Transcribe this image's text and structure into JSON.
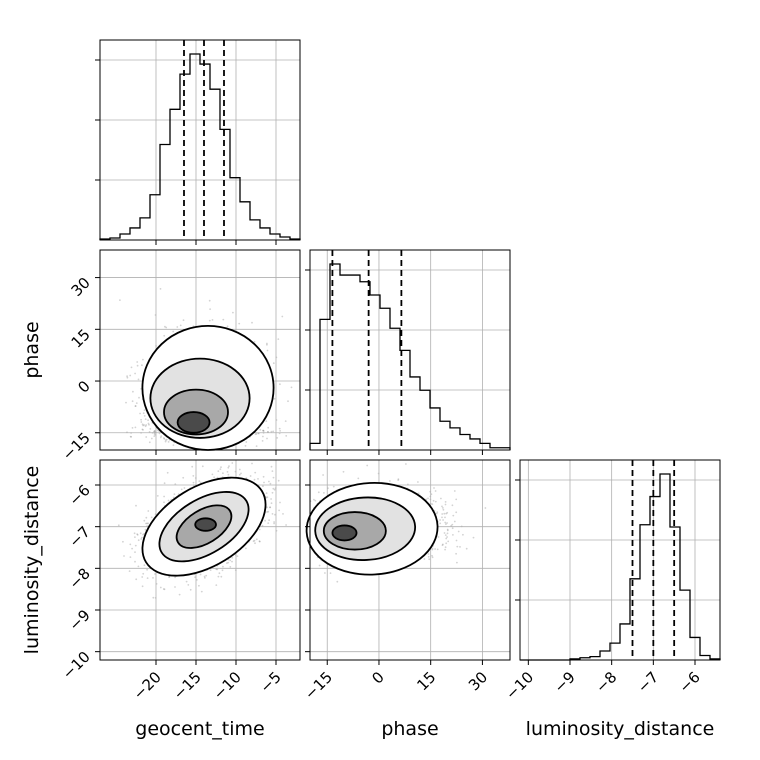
{
  "chart_data": {
    "type": "corner",
    "parameters": [
      "geocent_time",
      "phase",
      "luminosity_distance"
    ],
    "quantiles": {
      "geocent_time": [
        -16.5,
        -14.0,
        -11.5
      ],
      "phase": [
        -13.5,
        -3.0,
        6.5
      ],
      "luminosity_distance": [
        -7.5,
        -7.0,
        -6.5
      ]
    },
    "ranges": {
      "geocent_time": [
        -27,
        -2
      ],
      "phase": [
        -20,
        38
      ],
      "luminosity_distance": [
        -10.2,
        -5.4
      ]
    },
    "ticks": {
      "geocent_time": [
        -20,
        -15,
        -10,
        -5
      ],
      "phase": [
        -15,
        0,
        15,
        30
      ],
      "luminosity_distance": [
        -10,
        -9,
        -8,
        -7,
        -6
      ]
    },
    "tick_labels": {
      "geocent_time": [
        "−20",
        "−15",
        "−10",
        "−5"
      ],
      "phase": [
        "−15",
        "0",
        "15",
        "30"
      ],
      "luminosity_distance": [
        "−10",
        "−9",
        "−8",
        "−7",
        "−6"
      ]
    },
    "histograms": {
      "geocent_time": {
        "edges": [
          -27.0,
          -25.75,
          -24.5,
          -23.25,
          -22.0,
          -20.75,
          -19.5,
          -18.25,
          -17.0,
          -15.75,
          -14.5,
          -13.25,
          -12.0,
          -10.75,
          -9.5,
          -8.25,
          -7.0,
          -5.75,
          -4.5,
          -3.25,
          -2.0
        ],
        "counts": [
          1,
          2,
          6,
          12,
          22,
          45,
          95,
          130,
          165,
          185,
          175,
          150,
          110,
          62,
          38,
          20,
          12,
          6,
          3,
          1
        ]
      },
      "phase": {
        "edges": [
          -20.0,
          -17.1,
          -14.2,
          -11.3,
          -8.4,
          -5.5,
          -2.6,
          0.3,
          3.2,
          6.1,
          9.0,
          11.9,
          14.8,
          17.7,
          20.6,
          23.5,
          26.4,
          29.3,
          32.2,
          35.1,
          38.0
        ],
        "counts": [
          3,
          59,
          84,
          79,
          79,
          76,
          70,
          64,
          55,
          45,
          33,
          27,
          19,
          13,
          10,
          7,
          5,
          3,
          1,
          1
        ]
      },
      "luminosity_distance": {
        "edges": [
          -10.2,
          -9.96,
          -9.72,
          -9.48,
          -9.24,
          -9.0,
          -8.76,
          -8.52,
          -8.28,
          -8.04,
          -7.8,
          -7.56,
          -7.32,
          -7.08,
          -6.84,
          -6.6,
          -6.36,
          -6.12,
          -5.88,
          -5.64,
          -5.4
        ],
        "counts": [
          0,
          0,
          0,
          0,
          0,
          1,
          2,
          3,
          8,
          15,
          32,
          72,
          120,
          145,
          165,
          118,
          62,
          20,
          4,
          1
        ]
      }
    },
    "grid": true
  }
}
